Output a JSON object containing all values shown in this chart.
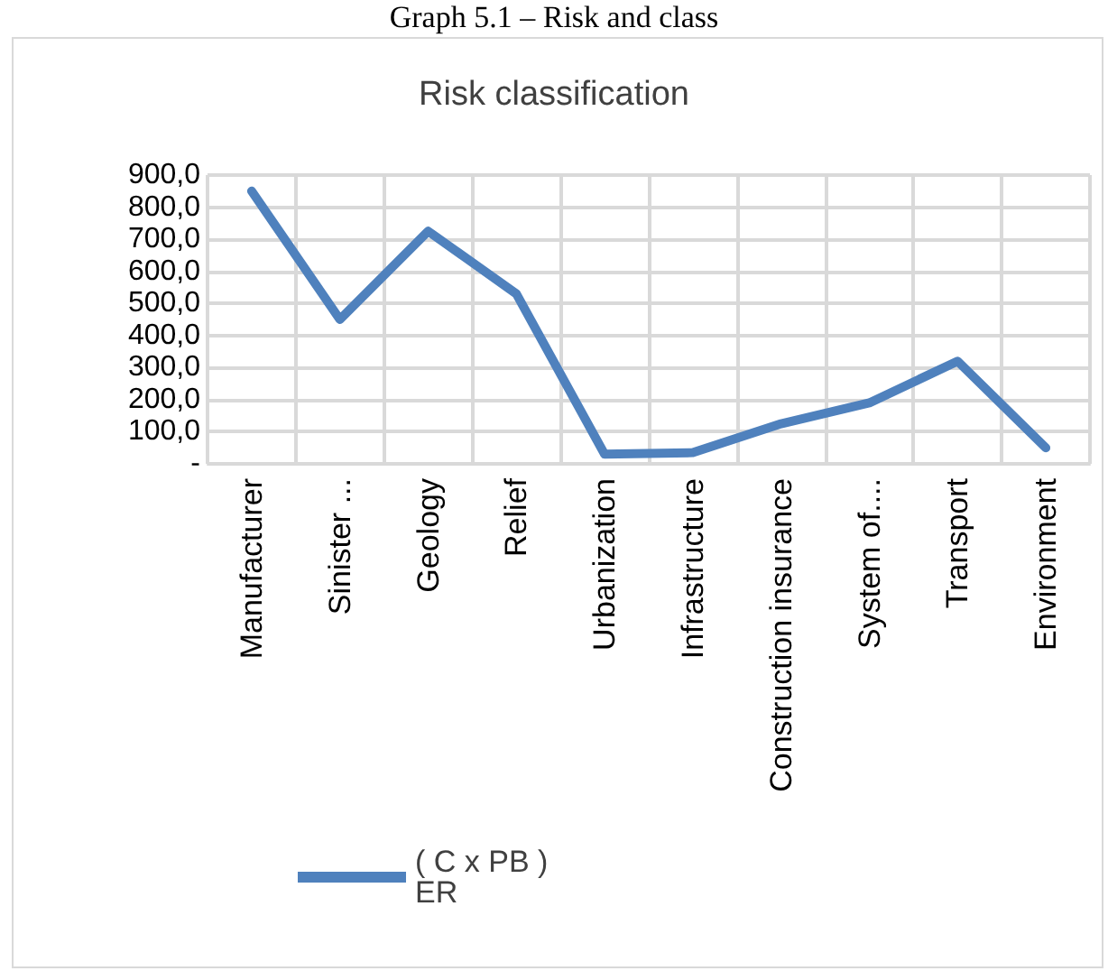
{
  "chart_data": {
    "type": "line",
    "title": "Risk classification",
    "annotations": [
      "Graph 5.1 – Risk and class"
    ],
    "categories": [
      "Manufacturer",
      "Sinister ...",
      "Geology",
      "Relief",
      "Urbanization",
      "Infrastructure",
      "Construction insurance",
      "System of....",
      "Transport",
      "Environment"
    ],
    "series": [
      {
        "name": "( C x PB ) ER",
        "color": "#4f81bd",
        "values": [
          850,
          450,
          725,
          530,
          30,
          35,
          125,
          190,
          320,
          50
        ]
      }
    ],
    "ylim": [
      0,
      900
    ],
    "yticks": [
      {
        "value": 0,
        "label": "-"
      },
      {
        "value": 100,
        "label": "100,0"
      },
      {
        "value": 200,
        "label": "200,0"
      },
      {
        "value": 300,
        "label": "300,0"
      },
      {
        "value": 400,
        "label": "400,0"
      },
      {
        "value": 500,
        "label": "500,0"
      },
      {
        "value": 600,
        "label": "600,0"
      },
      {
        "value": 700,
        "label": "700,0"
      },
      {
        "value": 800,
        "label": "800,0"
      },
      {
        "value": 900,
        "label": "900,0"
      }
    ],
    "grid": true,
    "legend": "bottom",
    "marker": "none",
    "line_style": "solid"
  }
}
